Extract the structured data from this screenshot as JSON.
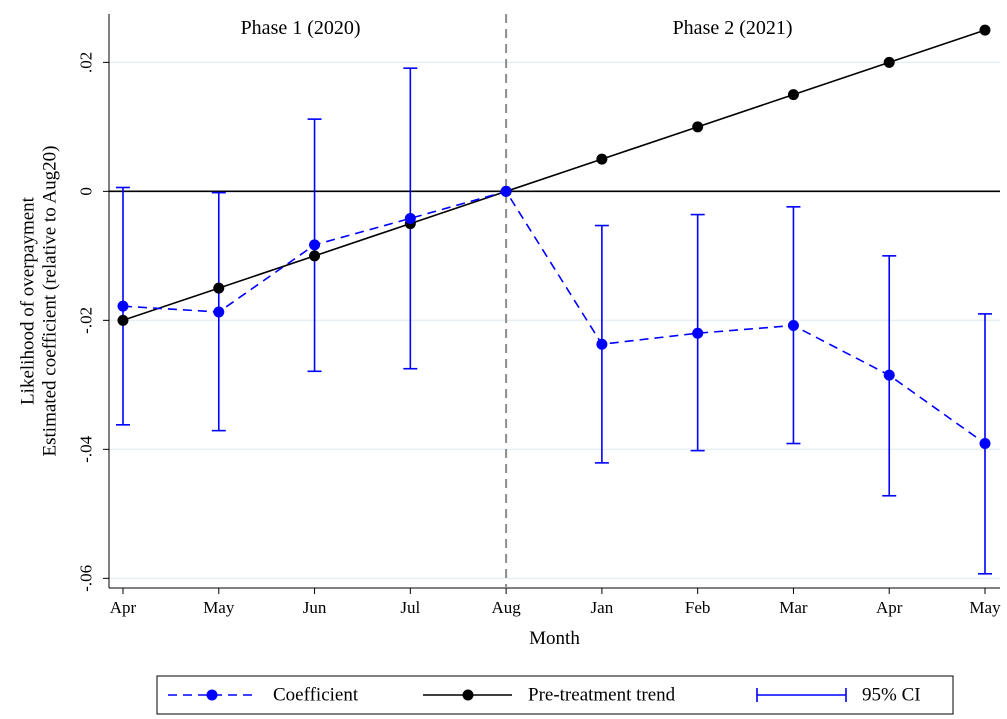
{
  "chart_data": {
    "type": "line",
    "x_title": "Month",
    "y_title_lines": [
      "Likelihood of overpayment",
      "Estimated coefficient (relative to Aug20)"
    ],
    "categories": [
      "Apr",
      "May",
      "Jun",
      "Jul",
      "Aug",
      "Jan",
      "Feb",
      "Mar",
      "Apr",
      "May"
    ],
    "ylim": [
      -0.0615,
      0.0275
    ],
    "yticks": [
      0.02,
      0,
      -0.02,
      -0.04,
      -0.06
    ],
    "ytick_labels": [
      ".02",
      "0",
      "-.02",
      "-.04",
      "-.06"
    ],
    "phases": [
      {
        "label": "Phase 1 (2020)"
      },
      {
        "label": "Phase 2 (2021)"
      }
    ],
    "treatment_divider_category_index": 4,
    "zero_line": 0,
    "series": [
      {
        "name": "Coefficient",
        "color": "#0000ff",
        "line": "dashed",
        "values": [
          -0.0178,
          -0.0187,
          -0.0083,
          -0.0042,
          0.0,
          -0.0237,
          -0.022,
          -0.0208,
          -0.0285,
          -0.0391
        ]
      },
      {
        "name": "Pre-treatment trend",
        "color": "#000000",
        "line": "solid",
        "values": [
          -0.02,
          -0.015,
          -0.01,
          -0.005,
          0.0,
          0.005,
          0.01,
          0.015,
          0.02,
          0.025
        ]
      },
      {
        "name": "95% CI",
        "color": "#0000ff",
        "type": "errorbar",
        "lower": [
          -0.0362,
          -0.0371,
          -0.0279,
          -0.0275,
          null,
          -0.0421,
          -0.0402,
          -0.0391,
          -0.0472,
          -0.0593
        ],
        "upper": [
          0.0006,
          -0.0002,
          0.0112,
          0.0191,
          null,
          -0.0053,
          -0.0036,
          -0.0024,
          -0.01,
          -0.019
        ]
      }
    ],
    "legend": {
      "placement": "bottom",
      "entries": [
        "Coefficient",
        "Pre-treatment trend",
        "95% CI"
      ]
    },
    "grid": true,
    "grid_color": "#e8eff3"
  }
}
